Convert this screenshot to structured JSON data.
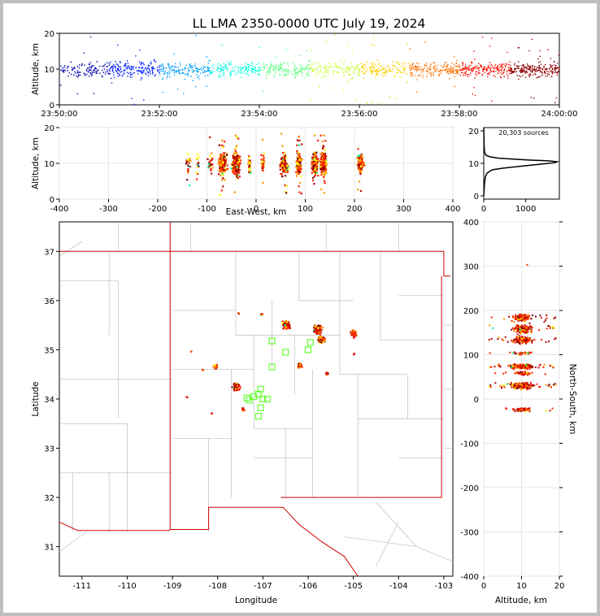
{
  "title": "LL LMA 2350-0000 UTC July 19, 2024",
  "chart_data": [
    {
      "type": "scatter",
      "panel": "altitude-vs-time",
      "ylabel": "Altitude, km",
      "xlim": [
        "23:50:00",
        "24:00:00"
      ],
      "ylim": [
        0,
        20
      ],
      "x_ticks": [
        "23:50:00",
        "23:52:00",
        "23:54:00",
        "23:56:00",
        "23:58:00",
        "24:00:00"
      ],
      "y_ticks": [
        0,
        10,
        20
      ],
      "color_by": "time",
      "colormap": [
        "#0000b0",
        "#0020ff",
        "#00a0ff",
        "#00ffe0",
        "#60ff80",
        "#c0ff20",
        "#ffd000",
        "#ff7000",
        "#ff1000",
        "#900000"
      ],
      "series": {
        "median_altitude_km": 10,
        "spread_km": 2,
        "density_profile": [
          0.6,
          1.0,
          1.0,
          0.8,
          0.9,
          0.7,
          0.8,
          0.9,
          1.0,
          1.3
        ]
      }
    },
    {
      "type": "scatter",
      "panel": "altitude-vs-east-west",
      "xlabel": "East-West, km",
      "ylabel": "Altitude, km",
      "xlim": [
        -400,
        400
      ],
      "ylim": [
        0,
        20
      ],
      "x_ticks": [
        -400,
        -300,
        -200,
        -100,
        0,
        100,
        200,
        300,
        400
      ],
      "y_ticks": [
        0,
        10,
        20
      ],
      "clusters": [
        {
          "x": -140,
          "w": 8,
          "n": 20
        },
        {
          "x": -120,
          "w": 6,
          "n": 15
        },
        {
          "x": -95,
          "w": 8,
          "n": 30
        },
        {
          "x": -70,
          "w": 12,
          "n": 220
        },
        {
          "x": -42,
          "w": 12,
          "n": 260
        },
        {
          "x": -15,
          "w": 5,
          "n": 25
        },
        {
          "x": 12,
          "w": 5,
          "n": 40
        },
        {
          "x": 55,
          "w": 12,
          "n": 120
        },
        {
          "x": 85,
          "w": 8,
          "n": 180
        },
        {
          "x": 118,
          "w": 10,
          "n": 160
        },
        {
          "x": 135,
          "w": 10,
          "n": 240
        },
        {
          "x": 210,
          "w": 12,
          "n": 90
        }
      ]
    },
    {
      "type": "line",
      "panel": "altitude-histogram",
      "annotation": "20,303 sources",
      "xlim": [
        0,
        1800
      ],
      "ylim": [
        -1,
        21
      ],
      "x_ticks": [
        0,
        1000
      ],
      "y_ticks": [
        0,
        10,
        20
      ],
      "x": [
        0,
        20,
        40,
        80,
        200,
        450,
        800,
        1100,
        1400,
        1700,
        1750,
        1500,
        1100,
        700,
        350,
        150,
        50,
        20,
        10,
        5,
        0
      ],
      "y": [
        0,
        4,
        6,
        7,
        8,
        8.5,
        9,
        9.4,
        9.8,
        10.2,
        10.5,
        10.8,
        11,
        11.3,
        11.6,
        12,
        12.5,
        13.5,
        15,
        18,
        21
      ]
    },
    {
      "type": "scatter",
      "panel": "plan-view",
      "xlabel": "Longitude",
      "ylabel": "Latitude",
      "xlim": [
        -111.5,
        -102.8
      ],
      "ylim": [
        30.4,
        37.6
      ],
      "x_ticks": [
        -111,
        -110,
        -109,
        -108,
        -107,
        -106,
        -105,
        -104,
        -103
      ],
      "y_ticks": [
        31,
        32,
        33,
        34,
        35,
        36,
        37
      ],
      "stations": [
        [
          -107.3,
          33.98
        ],
        [
          -107.05,
          34.2
        ],
        [
          -107.2,
          34.05
        ],
        [
          -107.05,
          33.82
        ],
        [
          -107.1,
          33.65
        ],
        [
          -106.5,
          34.95
        ],
        [
          -106.8,
          35.18
        ],
        [
          -106.0,
          35.0
        ],
        [
          -106.8,
          34.65
        ],
        [
          -105.95,
          35.15
        ],
        [
          -107.35,
          34.02
        ],
        [
          -107.0,
          34.0
        ],
        [
          -107.1,
          34.1
        ],
        [
          -106.9,
          34.0
        ]
      ],
      "storm_cells": [
        {
          "lon": -107.05,
          "lat": 35.73,
          "r": 0.04,
          "n": 10
        },
        {
          "lon": -107.55,
          "lat": 35.75,
          "r": 0.02,
          "n": 4
        },
        {
          "lon": -106.5,
          "lat": 35.52,
          "r": 0.1,
          "n": 120
        },
        {
          "lon": -105.8,
          "lat": 35.42,
          "r": 0.11,
          "n": 200
        },
        {
          "lon": -105.72,
          "lat": 35.22,
          "r": 0.09,
          "n": 120
        },
        {
          "lon": -105.0,
          "lat": 35.35,
          "r": 0.09,
          "n": 60
        },
        {
          "lon": -106.2,
          "lat": 34.7,
          "r": 0.06,
          "n": 50
        },
        {
          "lon": -105.6,
          "lat": 34.53,
          "r": 0.04,
          "n": 30
        },
        {
          "lon": -108.07,
          "lat": 34.67,
          "r": 0.06,
          "n": 40
        },
        {
          "lon": -107.6,
          "lat": 34.27,
          "r": 0.1,
          "n": 90
        },
        {
          "lon": -107.45,
          "lat": 33.8,
          "r": 0.04,
          "n": 20
        },
        {
          "lon": -105.0,
          "lat": 34.93,
          "r": 0.02,
          "n": 5
        },
        {
          "lon": -108.6,
          "lat": 34.98,
          "r": 0.02,
          "n": 3
        },
        {
          "lon": -108.7,
          "lat": 34.05,
          "r": 0.02,
          "n": 3
        },
        {
          "lon": -108.15,
          "lat": 33.72,
          "r": 0.02,
          "n": 4
        },
        {
          "lon": -108.35,
          "lat": 34.6,
          "r": 0.02,
          "n": 3
        }
      ]
    },
    {
      "type": "scatter",
      "panel": "north-south-vs-altitude",
      "xlabel": "Altitude, km",
      "ylabel": "North-South, km",
      "xlim": [
        0,
        20
      ],
      "ylim": [
        -400,
        400
      ],
      "x_ticks": [
        0,
        10,
        20
      ],
      "y_ticks": [
        -400,
        -300,
        -200,
        -100,
        0,
        100,
        200,
        300,
        400
      ],
      "clusters": [
        {
          "y": 185,
          "h": 12,
          "n": 120
        },
        {
          "y": 160,
          "h": 15,
          "n": 160
        },
        {
          "y": 135,
          "h": 12,
          "n": 160
        },
        {
          "y": 105,
          "h": 5,
          "n": 30
        },
        {
          "y": 75,
          "h": 8,
          "n": 260
        },
        {
          "y": 60,
          "h": 6,
          "n": 60
        },
        {
          "y": 32,
          "h": 10,
          "n": 260
        },
        {
          "y": -22,
          "h": 5,
          "n": 90
        },
        {
          "y": 305,
          "h": 1,
          "n": 1
        }
      ]
    }
  ]
}
